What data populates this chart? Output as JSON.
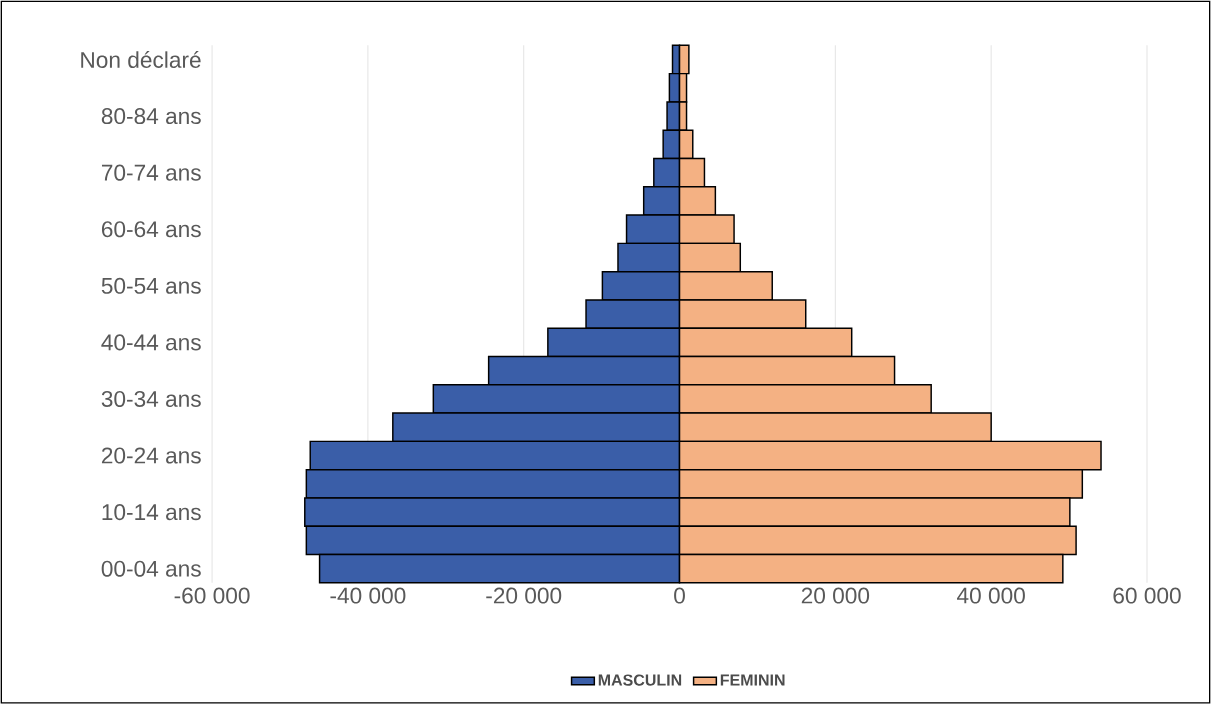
{
  "chart_data": {
    "type": "bar",
    "orientation": "horizontal",
    "stacked": true,
    "categories": [
      "Non déclaré",
      null,
      "80-84 ans",
      null,
      "70-74 ans",
      null,
      "60-64 ans",
      null,
      "50-54 ans",
      null,
      "40-44 ans",
      null,
      "30-34 ans",
      null,
      "20-24 ans",
      null,
      "10-14 ans",
      null,
      "00-04 ans"
    ],
    "series": [
      {
        "name": "MASCULIN",
        "color": "#3a5ea8",
        "values": [
          -900,
          -1300,
          -1600,
          -2100,
          -3300,
          -4600,
          -6800,
          -7900,
          -9900,
          -12000,
          -16900,
          -24500,
          -31600,
          -36800,
          -47400,
          -47900,
          -48100,
          -47900,
          -46200
        ]
      },
      {
        "name": "FEMININ",
        "color": "#f4b183",
        "values": [
          1200,
          900,
          900,
          1700,
          3200,
          4600,
          7000,
          7800,
          11900,
          16200,
          22100,
          27600,
          32300,
          40000,
          54100,
          51700,
          50100,
          50900,
          49200
        ]
      }
    ],
    "xlim": [
      -60000,
      60000
    ],
    "xticks": [
      {
        "value": -60000,
        "label": "-60 000"
      },
      {
        "value": -40000,
        "label": "-40 000"
      },
      {
        "value": -20000,
        "label": "-20 000"
      },
      0,
      {
        "value": 20000,
        "label": "20 000"
      },
      {
        "value": 40000,
        "label": "40 000"
      },
      {
        "value": 60000,
        "label": "60 000"
      }
    ],
    "grid": "x",
    "legend": "bottom"
  }
}
